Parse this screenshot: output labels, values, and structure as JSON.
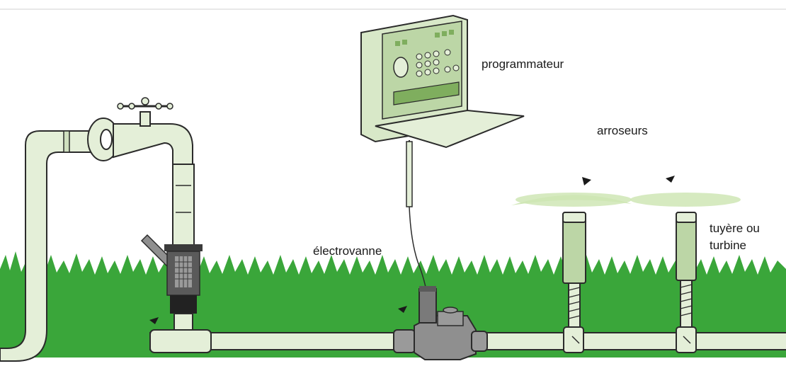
{
  "labels": {
    "controller": "programmateur",
    "sprinklers": "arroseurs",
    "valve": "électrovanne",
    "head_line1": "tuyère ou",
    "head_line2": "turbine"
  },
  "colors": {
    "pipe_fill": "#e4efd8",
    "pipe_stroke": "#2b2b2b",
    "grass": "#3aa63a",
    "grass_dark": "#2d8f2f",
    "controller_face": "#bcd6a6",
    "spray": "#cfe6b5",
    "valve_body": "#8f8f8f",
    "filter_dark": "#3b3b3b"
  },
  "icons": [
    "faucet-icon",
    "filter-icon",
    "controller-icon",
    "solenoid-valve-icon",
    "sprinkler-head-icon",
    "flow-arrow-icon"
  ]
}
